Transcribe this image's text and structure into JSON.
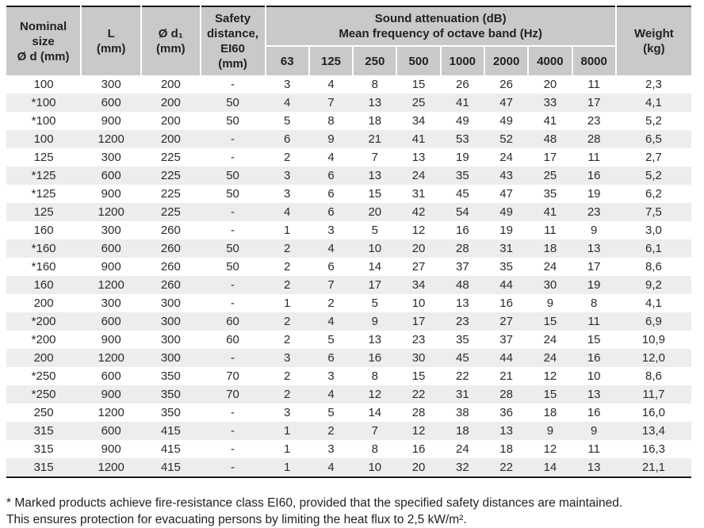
{
  "table": {
    "headers": {
      "nominal_size": "Nominal\nsize\nØ d (mm)",
      "length": "L\n(mm)",
      "d1": "Ø d₁\n(mm)",
      "safety_distance": "Safety\ndistance,\nEI60\n(mm)",
      "sound_attenuation_group": "Sound attenuation (dB)\nMean frequency of octave band (Hz)",
      "weight": "Weight\n(kg)",
      "freq_bands": [
        "63",
        "125",
        "250",
        "500",
        "1000",
        "2000",
        "4000",
        "8000"
      ]
    },
    "rows": [
      [
        "100",
        "300",
        "200",
        "-",
        "3",
        "4",
        "8",
        "15",
        "26",
        "26",
        "20",
        "11",
        "2,3"
      ],
      [
        "*100",
        "600",
        "200",
        "50",
        "4",
        "7",
        "13",
        "25",
        "41",
        "47",
        "33",
        "17",
        "4,1"
      ],
      [
        "*100",
        "900",
        "200",
        "50",
        "5",
        "8",
        "18",
        "34",
        "49",
        "49",
        "41",
        "23",
        "5,2"
      ],
      [
        "100",
        "1200",
        "200",
        "-",
        "6",
        "9",
        "21",
        "41",
        "53",
        "52",
        "48",
        "28",
        "6,5"
      ],
      [
        "125",
        "300",
        "225",
        "-",
        "2",
        "4",
        "7",
        "13",
        "19",
        "24",
        "17",
        "11",
        "2,7"
      ],
      [
        "*125",
        "600",
        "225",
        "50",
        "3",
        "6",
        "13",
        "24",
        "35",
        "43",
        "25",
        "16",
        "5,2"
      ],
      [
        "*125",
        "900",
        "225",
        "50",
        "3",
        "6",
        "15",
        "31",
        "45",
        "47",
        "35",
        "19",
        "6,2"
      ],
      [
        "125",
        "1200",
        "225",
        "-",
        "4",
        "6",
        "20",
        "42",
        "54",
        "49",
        "41",
        "23",
        "7,5"
      ],
      [
        "160",
        "300",
        "260",
        "-",
        "1",
        "3",
        "5",
        "12",
        "16",
        "19",
        "11",
        "9",
        "3,0"
      ],
      [
        "*160",
        "600",
        "260",
        "50",
        "2",
        "4",
        "10",
        "20",
        "28",
        "31",
        "18",
        "13",
        "6,1"
      ],
      [
        "*160",
        "900",
        "260",
        "50",
        "2",
        "6",
        "14",
        "27",
        "37",
        "35",
        "24",
        "17",
        "8,6"
      ],
      [
        "160",
        "1200",
        "260",
        "-",
        "2",
        "7",
        "17",
        "34",
        "48",
        "44",
        "30",
        "19",
        "9,2"
      ],
      [
        "200",
        "300",
        "300",
        "-",
        "1",
        "2",
        "5",
        "10",
        "13",
        "16",
        "9",
        "8",
        "4,1"
      ],
      [
        "*200",
        "600",
        "300",
        "60",
        "2",
        "4",
        "9",
        "17",
        "23",
        "27",
        "15",
        "11",
        "6,9"
      ],
      [
        "*200",
        "900",
        "300",
        "60",
        "2",
        "5",
        "13",
        "23",
        "35",
        "37",
        "24",
        "15",
        "10,9"
      ],
      [
        "200",
        "1200",
        "300",
        "-",
        "3",
        "6",
        "16",
        "30",
        "45",
        "44",
        "24",
        "16",
        "12,0"
      ],
      [
        "*250",
        "600",
        "350",
        "70",
        "2",
        "3",
        "8",
        "15",
        "22",
        "21",
        "12",
        "10",
        "8,6"
      ],
      [
        "*250",
        "900",
        "350",
        "70",
        "2",
        "4",
        "12",
        "22",
        "31",
        "28",
        "15",
        "13",
        "11,7"
      ],
      [
        "250",
        "1200",
        "350",
        "-",
        "3",
        "5",
        "14",
        "28",
        "38",
        "36",
        "18",
        "16",
        "16,0"
      ],
      [
        "315",
        "600",
        "415",
        "-",
        "1",
        "2",
        "7",
        "12",
        "18",
        "13",
        "9",
        "9",
        "13,4"
      ],
      [
        "315",
        "900",
        "415",
        "-",
        "1",
        "3",
        "8",
        "16",
        "24",
        "18",
        "12",
        "11",
        "16,3"
      ],
      [
        "315",
        "1200",
        "415",
        "-",
        "1",
        "4",
        "10",
        "20",
        "32",
        "22",
        "14",
        "13",
        "21,1"
      ]
    ]
  },
  "footnote": {
    "line1": "* Marked products achieve fire-resistance class EI60, provided that the specified safety distances are maintained.",
    "line2": "This ensures protection for evacuating persons by limiting the heat flux to 2,5 kW/m²."
  },
  "colors": {
    "header_bg": "#c9c9c9",
    "row_alt_bg": "#ededed",
    "border_dark": "#191919",
    "text": "#262626"
  }
}
